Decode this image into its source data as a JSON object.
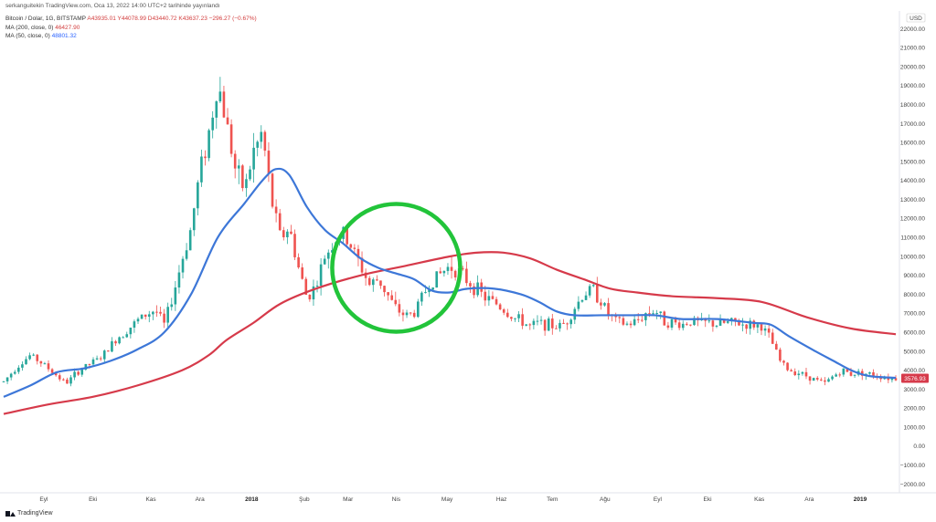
{
  "header": {
    "published": "serkanguitekin TradingView.com, Oca 13, 2022 14:00 UTC+2 tarihinde yayınlandı"
  },
  "legend": {
    "symbol": "Bitcoin / Dolar, 1G, BITSTAMP",
    "ohlc": "A43935.01  Y44078.99  D43440.72  K43637.23  −296.27 (−0.67%)",
    "ma200_label": "MA (200, close, 0)",
    "ma200_value": "46427.90",
    "ma50_label": "MA (50, close, 0)",
    "ma50_value": "48801.32"
  },
  "axis": {
    "currency": "USD",
    "y_ticks": [
      "22000.00",
      "21000.00",
      "20000.00",
      "19000.00",
      "18000.00",
      "17000.00",
      "16000.00",
      "15000.00",
      "14000.00",
      "13000.00",
      "12000.00",
      "11000.00",
      "10000.00",
      "9000.00",
      "8000.00",
      "7000.00",
      "6000.00",
      "5000.00",
      "4000.00",
      "3000.00",
      "2000.00",
      "1000.00",
      "0.00",
      "−1000.00",
      "−2000.00"
    ],
    "y_values": [
      22000,
      21000,
      20000,
      19000,
      18000,
      17000,
      16000,
      15000,
      14000,
      13000,
      12000,
      11000,
      10000,
      9000,
      8000,
      7000,
      6000,
      5000,
      4000,
      3000,
      2000,
      1000,
      0,
      -1000,
      -2000
    ],
    "x_ticks": [
      {
        "label": "Eyl",
        "t": 0.045,
        "bold": false
      },
      {
        "label": "Eki",
        "t": 0.1,
        "bold": false
      },
      {
        "label": "Kas",
        "t": 0.165,
        "bold": false
      },
      {
        "label": "Ara",
        "t": 0.22,
        "bold": false
      },
      {
        "label": "2018",
        "t": 0.278,
        "bold": true
      },
      {
        "label": "Şub",
        "t": 0.337,
        "bold": false
      },
      {
        "label": "Mar",
        "t": 0.386,
        "bold": false
      },
      {
        "label": "Nis",
        "t": 0.44,
        "bold": false
      },
      {
        "label": "May",
        "t": 0.497,
        "bold": false
      },
      {
        "label": "Haz",
        "t": 0.558,
        "bold": false
      },
      {
        "label": "Tem",
        "t": 0.615,
        "bold": false
      },
      {
        "label": "Ağu",
        "t": 0.674,
        "bold": false
      },
      {
        "label": "Eyl",
        "t": 0.733,
        "bold": false
      },
      {
        "label": "Eki",
        "t": 0.789,
        "bold": false
      },
      {
        "label": "Kas",
        "t": 0.847,
        "bold": false
      },
      {
        "label": "Ara",
        "t": 0.903,
        "bold": false
      },
      {
        "label": "2019",
        "t": 0.96,
        "bold": true
      }
    ],
    "last_price": "3576.93"
  },
  "colors": {
    "up": "#26a69a",
    "down": "#ef5350",
    "ma200": "#d63a4a",
    "ma50": "#3d77d8",
    "highlight_circle": "#22c43a",
    "price_badge": "#d63a4a"
  },
  "chart_data": {
    "type": "candlestick",
    "title": "Bitcoin / Dolar, 1G, BITSTAMP",
    "ylabel": "USD",
    "ylim": [
      -2000,
      22000
    ],
    "x_range": [
      "2017-08",
      "2019-01"
    ],
    "price_path": [
      [
        0.0,
        3400
      ],
      [
        0.015,
        4200
      ],
      [
        0.03,
        4800
      ],
      [
        0.045,
        4300
      ],
      [
        0.06,
        3700
      ],
      [
        0.07,
        3300
      ],
      [
        0.08,
        3800
      ],
      [
        0.095,
        4300
      ],
      [
        0.11,
        4700
      ],
      [
        0.125,
        5600
      ],
      [
        0.14,
        6200
      ],
      [
        0.155,
        6800
      ],
      [
        0.17,
        7200
      ],
      [
        0.18,
        6400
      ],
      [
        0.19,
        8000
      ],
      [
        0.2,
        9800
      ],
      [
        0.21,
        11500
      ],
      [
        0.22,
        14500
      ],
      [
        0.23,
        16500
      ],
      [
        0.24,
        19200
      ],
      [
        0.25,
        17000
      ],
      [
        0.26,
        14500
      ],
      [
        0.27,
        13500
      ],
      [
        0.28,
        15500
      ],
      [
        0.29,
        16500
      ],
      [
        0.3,
        13000
      ],
      [
        0.31,
        11000
      ],
      [
        0.32,
        11500
      ],
      [
        0.33,
        9500
      ],
      [
        0.34,
        7800
      ],
      [
        0.35,
        8500
      ],
      [
        0.36,
        10000
      ],
      [
        0.37,
        10800
      ],
      [
        0.38,
        11200
      ],
      [
        0.39,
        10500
      ],
      [
        0.4,
        9500
      ],
      [
        0.41,
        8500
      ],
      [
        0.42,
        8800
      ],
      [
        0.43,
        8000
      ],
      [
        0.44,
        7200
      ],
      [
        0.45,
        6900
      ],
      [
        0.46,
        7000
      ],
      [
        0.47,
        8000
      ],
      [
        0.48,
        8700
      ],
      [
        0.49,
        9100
      ],
      [
        0.5,
        9500
      ],
      [
        0.51,
        9200
      ],
      [
        0.52,
        8700
      ],
      [
        0.53,
        8300
      ],
      [
        0.54,
        7800
      ],
      [
        0.55,
        7600
      ],
      [
        0.56,
        7200
      ],
      [
        0.57,
        6800
      ],
      [
        0.58,
        6600
      ],
      [
        0.59,
        6300
      ],
      [
        0.6,
        6500
      ],
      [
        0.61,
        6400
      ],
      [
        0.62,
        6300
      ],
      [
        0.63,
        6500
      ],
      [
        0.64,
        7300
      ],
      [
        0.65,
        8000
      ],
      [
        0.66,
        8300
      ],
      [
        0.67,
        7600
      ],
      [
        0.68,
        6800
      ],
      [
        0.69,
        6500
      ],
      [
        0.7,
        6400
      ],
      [
        0.71,
        6600
      ],
      [
        0.72,
        7000
      ],
      [
        0.73,
        7200
      ],
      [
        0.74,
        6600
      ],
      [
        0.75,
        6500
      ],
      [
        0.76,
        6400
      ],
      [
        0.77,
        6600
      ],
      [
        0.78,
        6500
      ],
      [
        0.79,
        6500
      ],
      [
        0.8,
        6400
      ],
      [
        0.81,
        6500
      ],
      [
        0.82,
        6500
      ],
      [
        0.83,
        6400
      ],
      [
        0.84,
        6400
      ],
      [
        0.85,
        6300
      ],
      [
        0.86,
        5600
      ],
      [
        0.87,
        4500
      ],
      [
        0.88,
        4000
      ],
      [
        0.89,
        3900
      ],
      [
        0.9,
        3700
      ],
      [
        0.91,
        3500
      ],
      [
        0.92,
        3300
      ],
      [
        0.93,
        3700
      ],
      [
        0.94,
        4000
      ],
      [
        0.95,
        3800
      ],
      [
        0.96,
        3900
      ],
      [
        0.97,
        3800
      ],
      [
        0.98,
        3700
      ],
      [
        0.995,
        3577
      ]
    ],
    "series": [
      {
        "name": "MA (200, close, 0)",
        "points": [
          [
            0.0,
            1700
          ],
          [
            0.05,
            2200
          ],
          [
            0.1,
            2600
          ],
          [
            0.15,
            3200
          ],
          [
            0.2,
            4000
          ],
          [
            0.23,
            4800
          ],
          [
            0.25,
            5600
          ],
          [
            0.28,
            6500
          ],
          [
            0.31,
            7500
          ],
          [
            0.35,
            8300
          ],
          [
            0.4,
            9000
          ],
          [
            0.45,
            9500
          ],
          [
            0.5,
            10000
          ],
          [
            0.53,
            10200
          ],
          [
            0.56,
            10200
          ],
          [
            0.59,
            9900
          ],
          [
            0.62,
            9300
          ],
          [
            0.65,
            8800
          ],
          [
            0.68,
            8300
          ],
          [
            0.71,
            8100
          ],
          [
            0.75,
            7900
          ],
          [
            0.8,
            7800
          ],
          [
            0.85,
            7600
          ],
          [
            0.9,
            6800
          ],
          [
            0.95,
            6200
          ],
          [
            1.0,
            5900
          ]
        ]
      },
      {
        "name": "MA (50, close, 0)",
        "points": [
          [
            0.0,
            2600
          ],
          [
            0.03,
            3200
          ],
          [
            0.06,
            3900
          ],
          [
            0.09,
            4100
          ],
          [
            0.12,
            4500
          ],
          [
            0.15,
            5100
          ],
          [
            0.18,
            6000
          ],
          [
            0.21,
            8000
          ],
          [
            0.24,
            11000
          ],
          [
            0.27,
            12800
          ],
          [
            0.29,
            14000
          ],
          [
            0.305,
            14600
          ],
          [
            0.32,
            14300
          ],
          [
            0.34,
            12600
          ],
          [
            0.36,
            11400
          ],
          [
            0.38,
            10700
          ],
          [
            0.4,
            9900
          ],
          [
            0.42,
            9400
          ],
          [
            0.44,
            9100
          ],
          [
            0.46,
            8800
          ],
          [
            0.48,
            8200
          ],
          [
            0.5,
            8100
          ],
          [
            0.52,
            8300
          ],
          [
            0.55,
            8300
          ],
          [
            0.58,
            8000
          ],
          [
            0.6,
            7600
          ],
          [
            0.62,
            7100
          ],
          [
            0.64,
            6900
          ],
          [
            0.67,
            6900
          ],
          [
            0.7,
            6900
          ],
          [
            0.73,
            6900
          ],
          [
            0.76,
            6700
          ],
          [
            0.8,
            6700
          ],
          [
            0.84,
            6500
          ],
          [
            0.86,
            6400
          ],
          [
            0.88,
            5800
          ],
          [
            0.91,
            5000
          ],
          [
            0.93,
            4500
          ],
          [
            0.95,
            4000
          ],
          [
            0.97,
            3700
          ],
          [
            1.0,
            3600
          ]
        ]
      }
    ],
    "annotations": [
      {
        "type": "circle",
        "center": [
          0.44,
          9400
        ]
      }
    ],
    "grid": false,
    "legend": "top-left"
  },
  "footer": {
    "brand": "TradingView"
  }
}
